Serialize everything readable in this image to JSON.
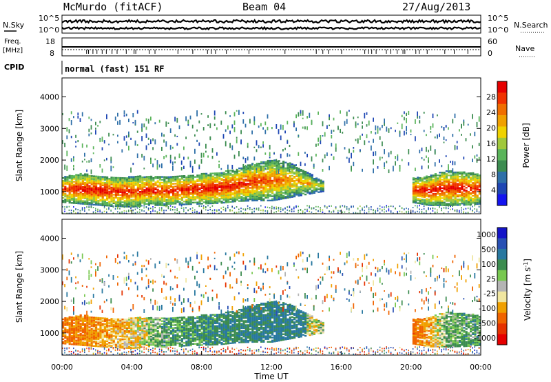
{
  "header": {
    "station": "McMurdo (fitACF)",
    "beam": "Beam 04",
    "date": "27/Aug/2013"
  },
  "noise_panel": {
    "left_label": "N.Sky",
    "right_label": "N.Search",
    "left_ticks": [
      "10^5",
      "10^0"
    ],
    "right_ticks": [
      "10^5",
      "10^0"
    ]
  },
  "freq_panel": {
    "left_label_1": "Freq.",
    "left_label_2": "[MHz]",
    "right_label": "Nave",
    "left_ticks": [
      "18",
      "8"
    ],
    "right_ticks": [
      "60",
      "0"
    ]
  },
  "cpid": {
    "label": "CPID",
    "value": "normal (fast) 151 RF"
  },
  "colors": {
    "power_scale": [
      "#1414f0",
      "#1e46b4",
      "#2e6fa8",
      "#3c8c50",
      "#5ab45a",
      "#a0c83c",
      "#f0d200",
      "#f0a000",
      "#f06e00",
      "#f03200",
      "#e60000"
    ],
    "velocity_scale": [
      "#1414c8",
      "#2850b4",
      "#2878a0",
      "#3c8c50",
      "#78c850",
      "#b4b4b4",
      "#f0e6a0",
      "#f0a000",
      "#f06400",
      "#e63200",
      "#e60000"
    ]
  },
  "chart_data": [
    {
      "type": "heatmap",
      "name": "Power",
      "xlabel": "",
      "ylabel": "Slant Range [km]",
      "xlim": [
        0,
        24
      ],
      "ylim": [
        300,
        4600
      ],
      "yticks": [
        1000,
        2000,
        3000,
        4000
      ],
      "colorbar": {
        "label": "Power [dB]",
        "range": [
          0,
          32
        ],
        "ticks": [
          4,
          8,
          12,
          16,
          20,
          24,
          28
        ]
      },
      "dense_region": {
        "x": [
          0,
          1,
          2,
          3,
          4,
          5,
          6,
          7,
          8,
          9,
          10,
          11,
          12,
          13,
          14,
          15,
          16,
          17,
          18,
          19,
          20,
          21,
          22,
          23,
          24
        ],
        "lower_km": [
          650,
          600,
          560,
          520,
          500,
          560,
          540,
          580,
          600,
          620,
          680,
          700,
          700,
          800,
          900,
          1000,
          null,
          null,
          null,
          null,
          650,
          550,
          550,
          560,
          600
        ],
        "upper_km": [
          1450,
          1550,
          1500,
          1450,
          1450,
          1500,
          1450,
          1500,
          1550,
          1600,
          1700,
          1900,
          2000,
          1900,
          1600,
          1300,
          null,
          null,
          null,
          null,
          1400,
          1500,
          1650,
          1600,
          1550
        ],
        "peak_power_db": [
          26,
          28,
          28,
          27,
          26,
          27,
          26,
          27,
          28,
          28,
          27,
          26,
          24,
          22,
          20,
          16,
          null,
          null,
          null,
          null,
          26,
          28,
          28,
          28,
          27
        ]
      }
    },
    {
      "type": "heatmap",
      "name": "Velocity",
      "xlabel": "Time UT",
      "ylabel": "Slant Range [km]",
      "xlim": [
        0,
        24
      ],
      "ylim": [
        300,
        4600
      ],
      "xticks": [
        "00:00",
        "04:00",
        "08:00",
        "12:00",
        "16:00",
        "20:00",
        "00:00"
      ],
      "yticks": [
        1000,
        2000,
        3000,
        4000
      ],
      "colorbar": {
        "label": "Velocity [m s^-1]",
        "ticks": [
          1000,
          500,
          100,
          25,
          -25,
          -100,
          -500,
          -1000
        ]
      },
      "velocity_m_s": {
        "x": [
          0,
          2,
          4,
          6,
          8,
          10,
          12,
          14,
          16,
          18,
          20,
          22,
          24
        ],
        "typical": [
          -300,
          -200,
          -100,
          150,
          200,
          250,
          300,
          300,
          null,
          -300,
          -400,
          100,
          150
        ]
      }
    }
  ]
}
